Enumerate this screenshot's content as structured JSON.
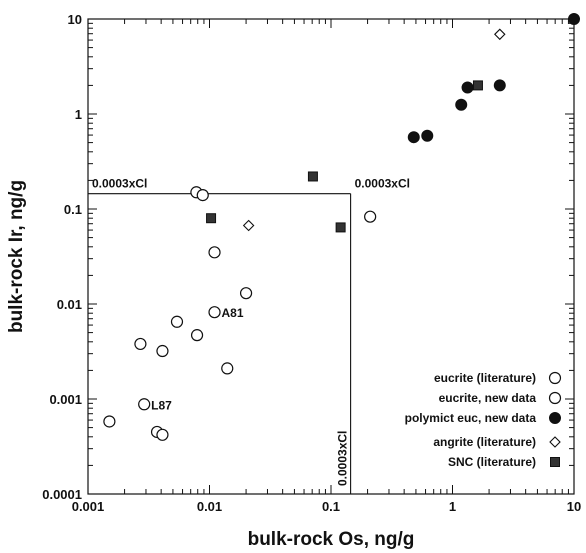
{
  "chart_data": {
    "type": "scatter",
    "xlabel": "bulk-rock Os, ng/g",
    "ylabel": "bulk-rock Ir, ng/g",
    "xscale": "log",
    "yscale": "log",
    "xlim": [
      0.001,
      10
    ],
    "ylim": [
      0.0001,
      10
    ],
    "x_ticks": [
      "0.001",
      "0.01",
      "0.1",
      "1",
      "10"
    ],
    "y_ticks": [
      "0.0001",
      "0.001",
      "0.01",
      "0.1",
      "1",
      "10"
    ],
    "grid": false,
    "legend_position": "bottom-right",
    "reference_value": 0.145,
    "reference_label": "0.0003xCl",
    "annotations": [
      {
        "text": "A81",
        "x": 0.011,
        "y": 0.0082
      },
      {
        "text": "L87",
        "x": 0.0029,
        "y": 0.00088
      }
    ],
    "series": [
      {
        "name": "eucrite (literature)",
        "marker": "open-circle",
        "points": [
          {
            "x": 0.0015,
            "y": 0.00058
          },
          {
            "x": 0.0027,
            "y": 0.0038
          },
          {
            "x": 0.0029,
            "y": 0.00088
          },
          {
            "x": 0.0037,
            "y": 0.00045
          },
          {
            "x": 0.0041,
            "y": 0.00042
          },
          {
            "x": 0.0041,
            "y": 0.0032
          },
          {
            "x": 0.0054,
            "y": 0.0065
          },
          {
            "x": 0.0079,
            "y": 0.0047
          },
          {
            "x": 0.011,
            "y": 0.0082
          },
          {
            "x": 0.011,
            "y": 0.035
          },
          {
            "x": 0.014,
            "y": 0.0021
          },
          {
            "x": 0.02,
            "y": 0.013
          },
          {
            "x": 0.0078,
            "y": 0.15
          },
          {
            "x": 0.0088,
            "y": 0.14
          }
        ]
      },
      {
        "name": "eucrite, new data",
        "marker": "open-circle",
        "points": [
          {
            "x": 0.21,
            "y": 0.083
          }
        ]
      },
      {
        "name": "polymict euc, new data",
        "marker": "filled-circle",
        "points": [
          {
            "x": 0.48,
            "y": 0.57
          },
          {
            "x": 0.62,
            "y": 0.59
          },
          {
            "x": 1.18,
            "y": 1.25
          },
          {
            "x": 1.33,
            "y": 1.9
          },
          {
            "x": 2.45,
            "y": 2.0
          },
          {
            "x": 10.0,
            "y": 10.0
          }
        ]
      },
      {
        "name": "angrite (literature)",
        "marker": "open-diamond",
        "points": [
          {
            "x": 2.45,
            "y": 6.9
          },
          {
            "x": 0.021,
            "y": 0.067
          }
        ]
      },
      {
        "name": "SNC (literature)",
        "marker": "filled-square",
        "points": [
          {
            "x": 0.071,
            "y": 0.22
          },
          {
            "x": 0.0103,
            "y": 0.08
          },
          {
            "x": 0.12,
            "y": 0.064
          },
          {
            "x": 1.62,
            "y": 2.0
          }
        ]
      }
    ]
  }
}
